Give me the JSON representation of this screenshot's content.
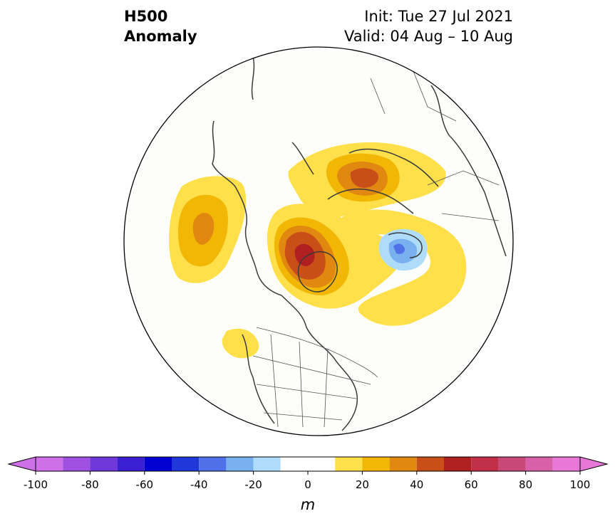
{
  "title": {
    "left_line1": "H500",
    "left_line2": "Anomaly",
    "right_line1": "Init: Tue 27 Jul 2021",
    "right_line2": "Valid: 04 Aug – 10 Aug"
  },
  "colorbar": {
    "unit": "m",
    "ticks": [
      "-100",
      "-80",
      "-60",
      "-40",
      "-20",
      "0",
      "20",
      "40",
      "60",
      "80",
      "100"
    ],
    "levels": [
      -100,
      -90,
      -80,
      -70,
      -60,
      -50,
      -40,
      -30,
      -20,
      -10,
      10,
      20,
      30,
      40,
      50,
      60,
      70,
      80,
      90,
      100
    ],
    "colors": [
      "#d070e8",
      "#a050e0",
      "#7038d8",
      "#3a20d0",
      "#0000d0",
      "#2038d8",
      "#5070e8",
      "#78b0f0",
      "#b0dcfc",
      "#ffffff",
      "#ffe04a",
      "#f2b705",
      "#e08810",
      "#c85018",
      "#b02020",
      "#c03048",
      "#c84878",
      "#d860a8",
      "#e878d8"
    ],
    "ext_low_color": "#d070e8",
    "ext_high_color": "#e878d8"
  },
  "map": {
    "projection": "north-polar-stereographic",
    "anomalies": [
      {
        "region": "north-pacific-alaska",
        "peak": 30
      },
      {
        "region": "greenland",
        "peak": 60
      },
      {
        "region": "scandinavia",
        "peak": 50
      },
      {
        "region": "central-siberia",
        "peak": -30
      },
      {
        "region": "western-russia",
        "peak": 20
      },
      {
        "region": "pacific-northwest",
        "peak": 20
      }
    ]
  }
}
